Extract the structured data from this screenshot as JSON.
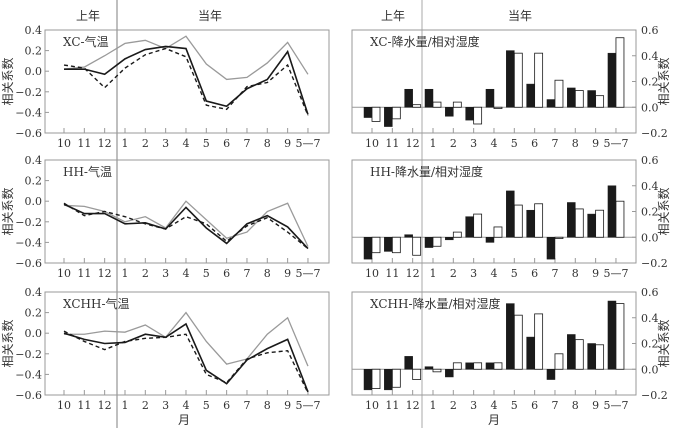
{
  "period_labels": {
    "previous_year": "上年",
    "current_year": "当年"
  },
  "xlabel": "月",
  "ylabel": "相关系数",
  "colors": {
    "gray_line": "#9a9a9a",
    "black": "#1a1a1a",
    "frame": "#999999"
  },
  "chart_data": [
    {
      "type": "line",
      "title": "XC-气温",
      "categories": [
        "10",
        "11",
        "12",
        "1",
        "2",
        "3",
        "4",
        "5",
        "6",
        "7",
        "8",
        "9",
        "5—7"
      ],
      "ylim": [
        -0.6,
        0.4
      ],
      "yticks": [
        "0.4",
        "0.2",
        "0.0",
        "−0.2",
        "−0.4",
        "−0.6"
      ],
      "series": [
        {
          "style": "gray-solid",
          "values": [
            0.02,
            0.04,
            0.15,
            0.27,
            0.3,
            0.22,
            0.34,
            0.07,
            -0.08,
            -0.06,
            0.08,
            0.28,
            -0.03
          ]
        },
        {
          "style": "black-solid",
          "values": [
            0.02,
            0.02,
            -0.03,
            0.12,
            0.21,
            0.24,
            0.22,
            -0.29,
            -0.34,
            -0.17,
            -0.08,
            0.19,
            -0.42
          ]
        },
        {
          "style": "black-dashed",
          "values": [
            0.06,
            0.03,
            -0.16,
            0.03,
            0.16,
            0.22,
            0.14,
            -0.33,
            -0.37,
            -0.15,
            -0.11,
            0.06,
            -0.43
          ]
        }
      ]
    },
    {
      "type": "bar",
      "title": "XC-降水量/相对湿度",
      "categories": [
        "10",
        "11",
        "12",
        "1",
        "2",
        "3",
        "4",
        "5",
        "6",
        "7",
        "8",
        "9",
        "5—7"
      ],
      "ylim": [
        -0.2,
        0.6
      ],
      "yticks": [
        "0.6",
        "0.4",
        "0.2",
        "0.0",
        "−0.2"
      ],
      "series": [
        {
          "style": "black-fill",
          "values": [
            -0.08,
            -0.15,
            0.14,
            0.14,
            -0.07,
            -0.1,
            0.14,
            0.44,
            0.18,
            0.06,
            0.15,
            0.13,
            0.42
          ]
        },
        {
          "style": "white-fill",
          "values": [
            -0.11,
            -0.09,
            0.02,
            0.04,
            0.04,
            -0.13,
            -0.01,
            0.42,
            0.42,
            0.21,
            0.13,
            0.09,
            0.54
          ]
        }
      ]
    },
    {
      "type": "line",
      "title": "HH-气温",
      "categories": [
        "10",
        "11",
        "12",
        "1",
        "2",
        "3",
        "4",
        "5",
        "6",
        "7",
        "8",
        "9",
        "5—7"
      ],
      "ylim": [
        -0.6,
        0.4
      ],
      "yticks": [
        "0.4",
        "0.2",
        "0.0",
        "−0.2",
        "−0.4",
        "−0.6"
      ],
      "series": [
        {
          "style": "gray-solid",
          "values": [
            -0.04,
            -0.05,
            -0.1,
            -0.2,
            -0.15,
            -0.26,
            0.0,
            -0.18,
            -0.36,
            -0.3,
            -0.1,
            -0.02,
            -0.44
          ]
        },
        {
          "style": "black-solid",
          "values": [
            -0.03,
            -0.12,
            -0.12,
            -0.22,
            -0.21,
            -0.27,
            -0.06,
            -0.26,
            -0.41,
            -0.22,
            -0.14,
            -0.25,
            -0.46
          ]
        },
        {
          "style": "black-dashed",
          "values": [
            -0.02,
            -0.14,
            -0.1,
            -0.15,
            -0.22,
            -0.27,
            -0.15,
            -0.22,
            -0.39,
            -0.24,
            -0.16,
            -0.3,
            -0.46
          ]
        }
      ]
    },
    {
      "type": "bar",
      "title": "HH-降水量/相对湿度",
      "categories": [
        "10",
        "11",
        "12",
        "1",
        "2",
        "3",
        "4",
        "5",
        "6",
        "7",
        "8",
        "9",
        "5—7"
      ],
      "ylim": [
        -0.2,
        0.6
      ],
      "yticks": [
        "0.6",
        "0.4",
        "0.2",
        "0.0",
        "−0.2"
      ],
      "series": [
        {
          "style": "black-fill",
          "values": [
            -0.17,
            -0.11,
            0.02,
            -0.08,
            -0.02,
            0.16,
            -0.04,
            0.36,
            0.21,
            -0.17,
            0.27,
            0.18,
            0.4
          ]
        },
        {
          "style": "white-fill",
          "values": [
            -0.12,
            -0.12,
            -0.14,
            -0.07,
            0.04,
            0.18,
            0.08,
            0.25,
            0.26,
            -0.01,
            0.22,
            0.21,
            0.28
          ]
        }
      ]
    },
    {
      "type": "line",
      "title": "XCHH-气温",
      "categories": [
        "10",
        "11",
        "12",
        "1",
        "2",
        "3",
        "4",
        "5",
        "6",
        "7",
        "8",
        "9",
        "5—7"
      ],
      "ylim": [
        -0.6,
        0.4
      ],
      "yticks": [
        "0.4",
        "0.2",
        "0.0",
        "−0.2",
        "−0.4",
        "−0.6"
      ],
      "series": [
        {
          "style": "gray-solid",
          "values": [
            -0.01,
            -0.01,
            0.02,
            0.01,
            0.08,
            -0.04,
            0.2,
            -0.08,
            -0.3,
            -0.25,
            -0.01,
            0.15,
            -0.32
          ]
        },
        {
          "style": "black-solid",
          "values": [
            0.0,
            -0.06,
            -0.1,
            -0.09,
            -0.01,
            -0.04,
            0.09,
            -0.36,
            -0.49,
            -0.26,
            -0.15,
            -0.06,
            -0.57
          ]
        },
        {
          "style": "black-dashed",
          "values": [
            0.02,
            -0.08,
            -0.16,
            -0.08,
            -0.05,
            -0.04,
            -0.01,
            -0.4,
            -0.48,
            -0.25,
            -0.19,
            -0.17,
            -0.58
          ]
        }
      ]
    },
    {
      "type": "bar",
      "title": "XCHH-降水量/相对湿度",
      "categories": [
        "10",
        "11",
        "12",
        "1",
        "2",
        "3",
        "4",
        "5",
        "6",
        "7",
        "8",
        "9",
        "5—7"
      ],
      "ylim": [
        -0.2,
        0.6
      ],
      "yticks": [
        "0.6",
        "0.4",
        "0.2",
        "0.0",
        "−0.2"
      ],
      "series": [
        {
          "style": "black-fill",
          "values": [
            -0.16,
            -0.16,
            0.1,
            0.02,
            -0.06,
            0.05,
            0.05,
            0.51,
            0.25,
            -0.08,
            0.27,
            0.2,
            0.53
          ]
        },
        {
          "style": "white-fill",
          "values": [
            -0.15,
            -0.14,
            -0.08,
            -0.02,
            0.05,
            0.05,
            0.05,
            0.42,
            0.43,
            0.12,
            0.23,
            0.19,
            0.51
          ]
        }
      ]
    }
  ]
}
